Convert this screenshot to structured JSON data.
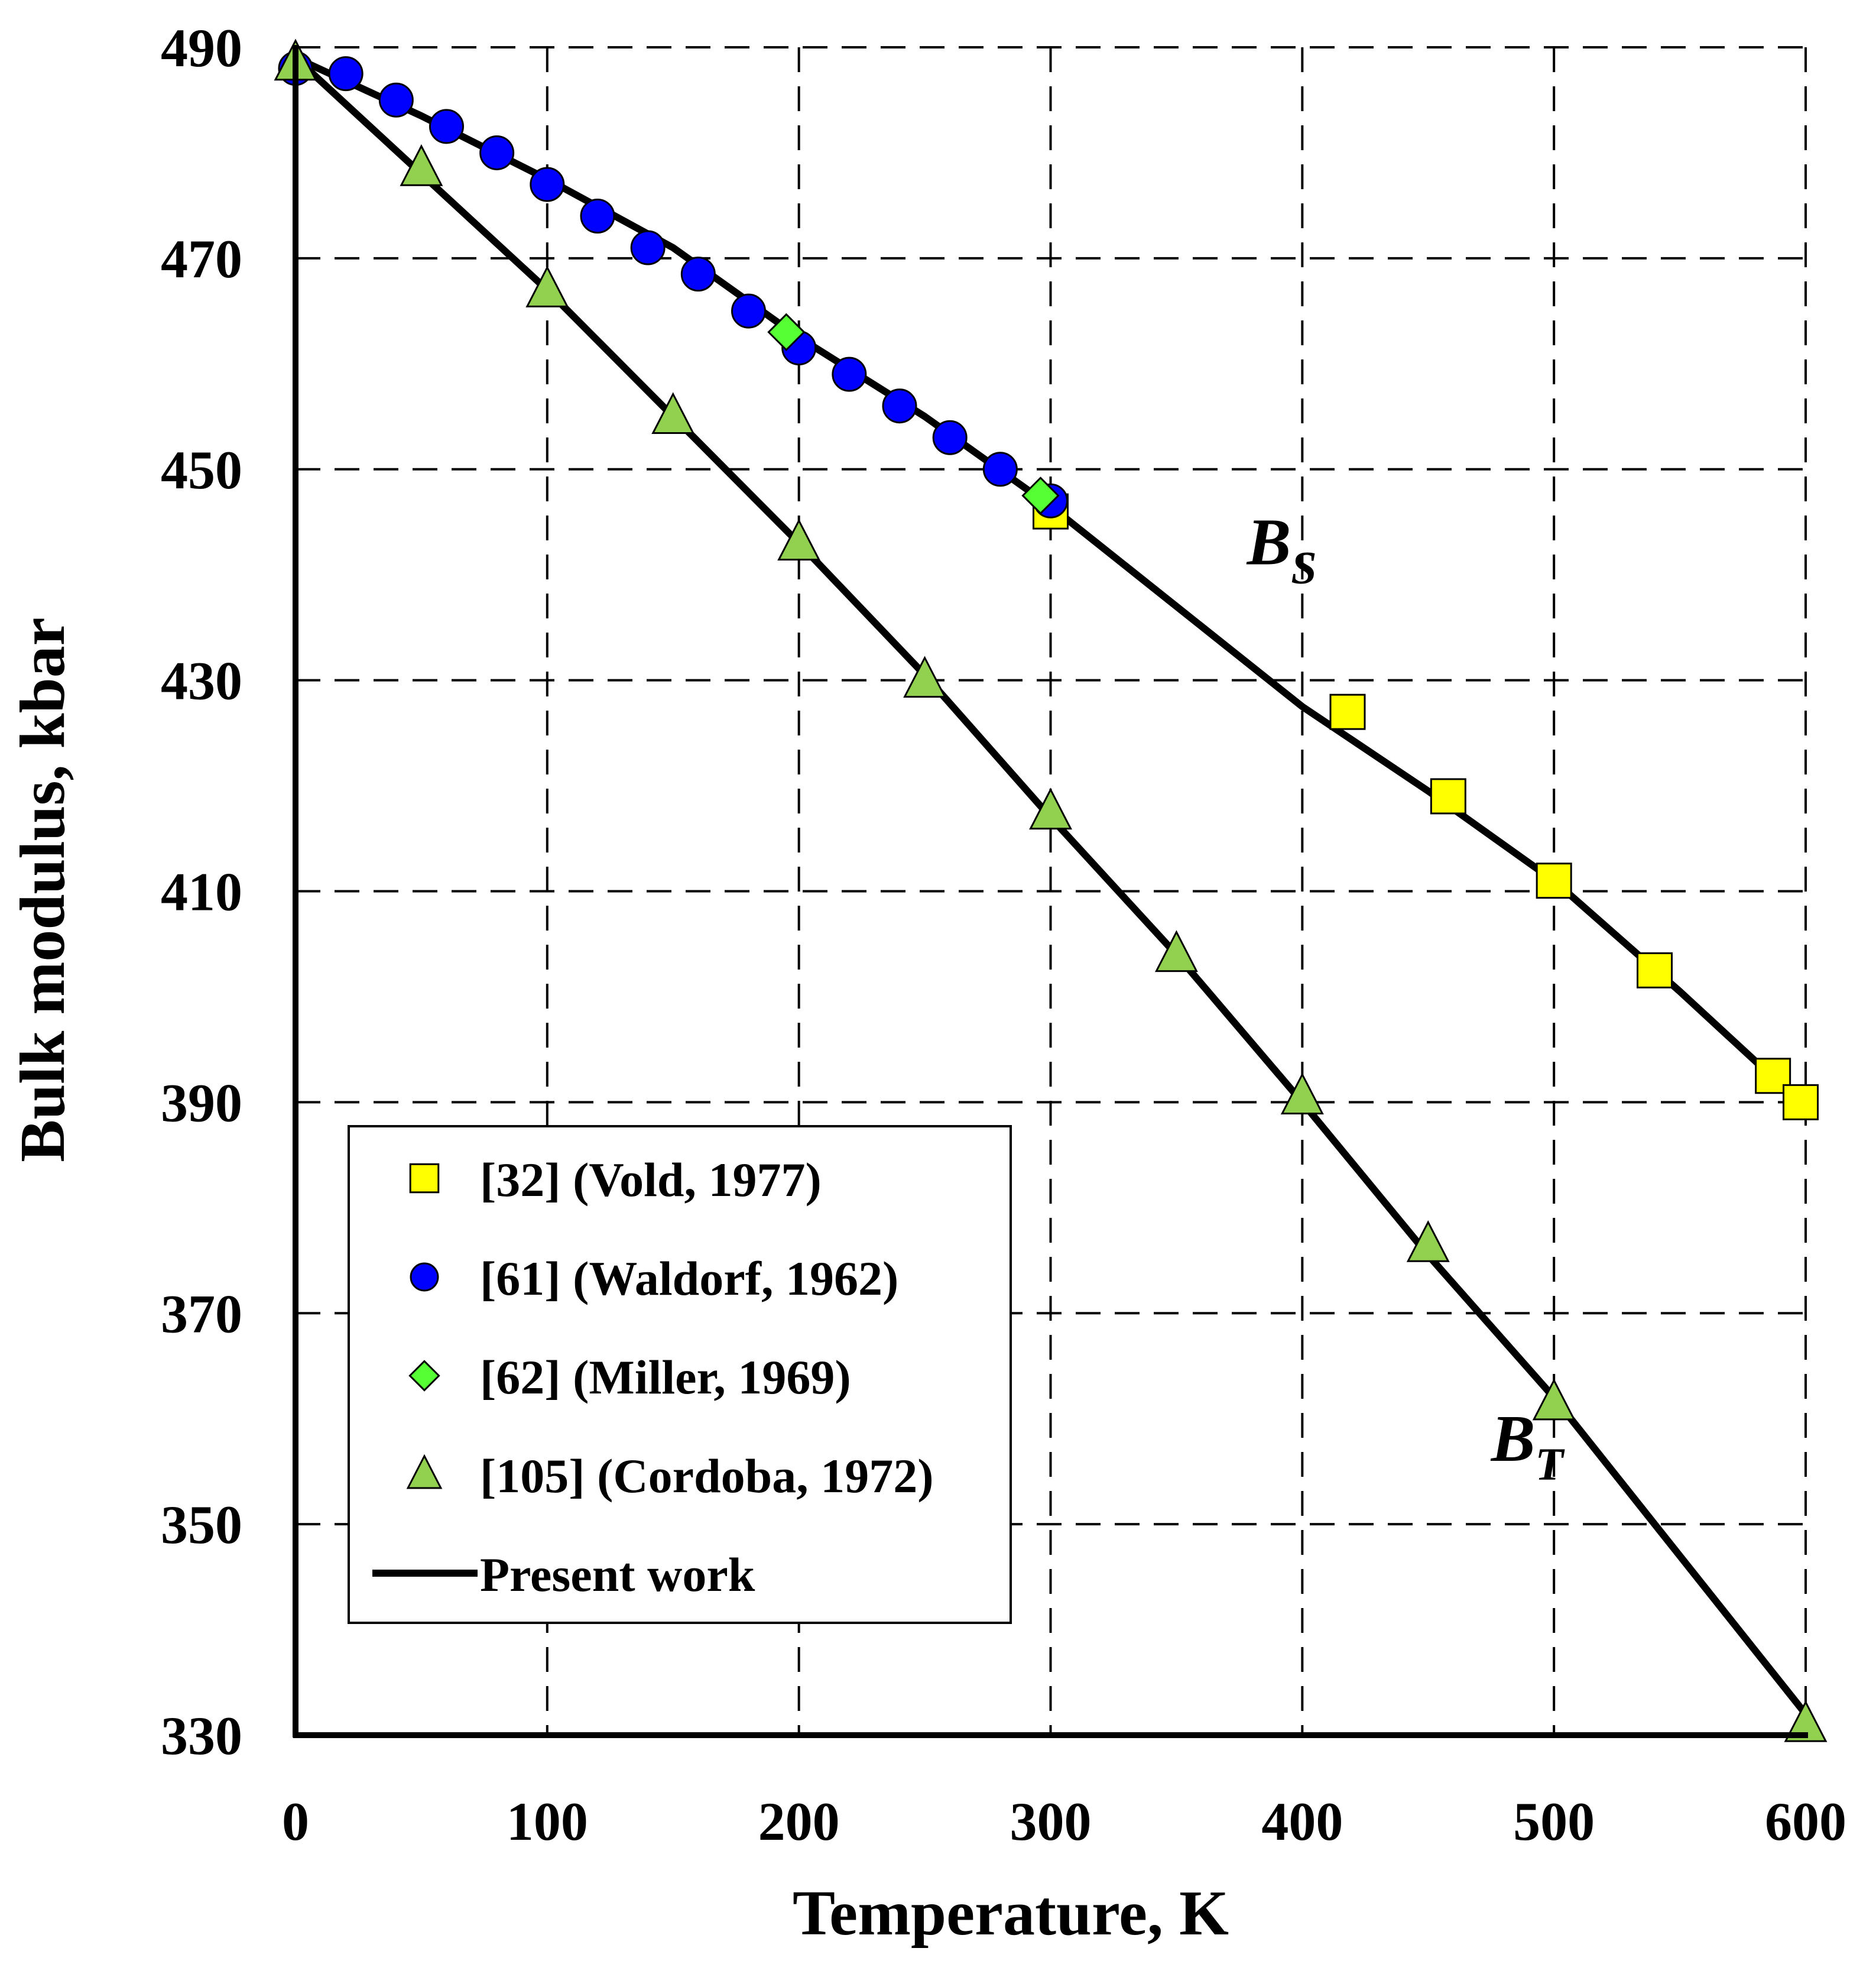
{
  "chart_data": {
    "type": "scatter",
    "title": "",
    "xlabel": "Temperature, K",
    "ylabel": "Bulk modulus, kbar",
    "xlim": [
      0,
      600
    ],
    "ylim": [
      330,
      490
    ],
    "x_ticks": [
      0,
      100,
      200,
      300,
      400,
      500,
      600
    ],
    "y_ticks": [
      330,
      350,
      370,
      390,
      410,
      430,
      450,
      470,
      490
    ],
    "x_tick_labels": [
      "0",
      "100",
      "200",
      "300",
      "400",
      "500",
      "600"
    ],
    "y_tick_labels": [
      "330",
      "350",
      "370",
      "390",
      "410",
      "430",
      "450",
      "470",
      "490"
    ],
    "grid": true,
    "legend_position": "bottom-left",
    "series": [
      {
        "name": "[32] (Vold, 1977)",
        "marker": "square",
        "color": "#ffff00",
        "points": [
          [
            300,
            446
          ],
          [
            418,
            427
          ],
          [
            458,
            419
          ],
          [
            500,
            411
          ],
          [
            540,
            402.5
          ],
          [
            587,
            392.5
          ],
          [
            598,
            390
          ]
        ]
      },
      {
        "name": "[61] (Waldorf, 1962)",
        "marker": "circle",
        "color": "#0000ff",
        "points": [
          [
            0,
            488
          ],
          [
            20,
            487.5
          ],
          [
            40,
            485
          ],
          [
            60,
            482.5
          ],
          [
            80,
            480
          ],
          [
            100,
            477
          ],
          [
            120,
            474
          ],
          [
            140,
            471
          ],
          [
            160,
            468.5
          ],
          [
            180,
            465
          ],
          [
            200,
            461.5
          ],
          [
            220,
            459
          ],
          [
            240,
            456
          ],
          [
            260,
            453
          ],
          [
            280,
            450
          ],
          [
            300,
            447
          ]
        ]
      },
      {
        "name": "[62] (Miller, 1969)",
        "marker": "diamond",
        "color": "#55ff33",
        "points": [
          [
            195,
            463
          ],
          [
            296,
            447.5
          ]
        ]
      },
      {
        "name": "[105] (Cordoba, 1972)",
        "marker": "triangle",
        "color": "#92d050",
        "points": [
          [
            0,
            488.5
          ],
          [
            50,
            478.5
          ],
          [
            100,
            467
          ],
          [
            150,
            455
          ],
          [
            200,
            443
          ],
          [
            250,
            430
          ],
          [
            300,
            417.5
          ],
          [
            350,
            404
          ],
          [
            400,
            390.5
          ],
          [
            450,
            376.5
          ],
          [
            500,
            361.5
          ],
          [
            600,
            331
          ]
        ]
      },
      {
        "name": "Present work",
        "marker": "line",
        "color": "#000000",
        "curves": [
          {
            "label": "B_S",
            "points": [
              [
                0,
                489
              ],
              [
                50,
                483.5
              ],
              [
                100,
                477.5
              ],
              [
                150,
                471
              ],
              [
                200,
                462.5
              ],
              [
                250,
                455
              ],
              [
                300,
                446.5
              ],
              [
                350,
                437
              ],
              [
                400,
                427.5
              ],
              [
                450,
                419.5
              ],
              [
                500,
                411
              ],
              [
                550,
                400.5
              ],
              [
                600,
                389.5
              ]
            ]
          },
          {
            "label": "B_T",
            "points": [
              [
                0,
                489
              ],
              [
                50,
                478
              ],
              [
                100,
                467
              ],
              [
                150,
                455
              ],
              [
                200,
                443
              ],
              [
                250,
                430.5
              ],
              [
                300,
                417
              ],
              [
                350,
                404
              ],
              [
                400,
                390
              ],
              [
                450,
                375.5
              ],
              [
                500,
                362
              ],
              [
                550,
                347
              ],
              [
                600,
                332
              ]
            ]
          }
        ]
      }
    ],
    "annotations": [
      {
        "id": "bs",
        "main": "B",
        "sub": "S",
        "x": 378,
        "y": 441
      },
      {
        "id": "bt",
        "main": "B",
        "sub": "T",
        "x": 475,
        "y": 356
      }
    ]
  }
}
